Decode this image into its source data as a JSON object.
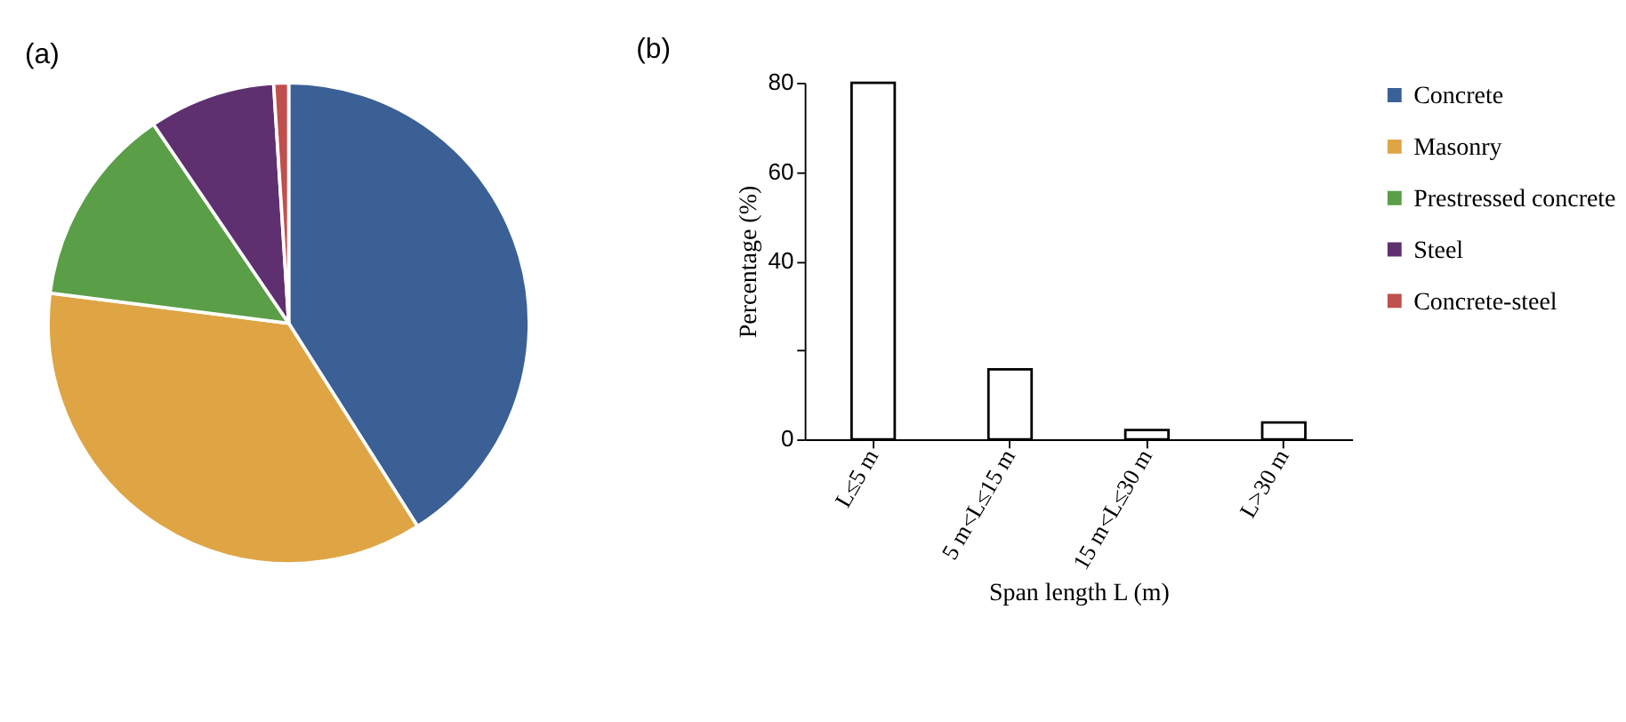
{
  "chart_data": [
    {
      "type": "pie",
      "title": "(a)",
      "categories": [
        "Concrete",
        "Masonry",
        "Prestressed concrete",
        "Steel",
        "Concrete-steel"
      ],
      "values": [
        41,
        36,
        13.5,
        8.5,
        1
      ],
      "colors": [
        "#3b6096",
        "#dfa544",
        "#5a9e47",
        "#5e3070",
        "#c0504d"
      ],
      "legend": "right"
    },
    {
      "type": "bar",
      "title": "(b)",
      "categories": [
        "L≤5 m",
        "5 m<L≤15 m",
        "15 m<L≤30 m",
        "L>30 m"
      ],
      "values": [
        80,
        15.7,
        2.1,
        3.8
      ],
      "color": "#ffffff",
      "ylim": [
        0,
        80
      ],
      "yticks": [
        0,
        {
          "value": 20,
          "label": null
        },
        40,
        60,
        80
      ],
      "xlabel": "Span length L (m)",
      "ylabel": "Percentage (%)",
      "grid": false
    }
  ]
}
